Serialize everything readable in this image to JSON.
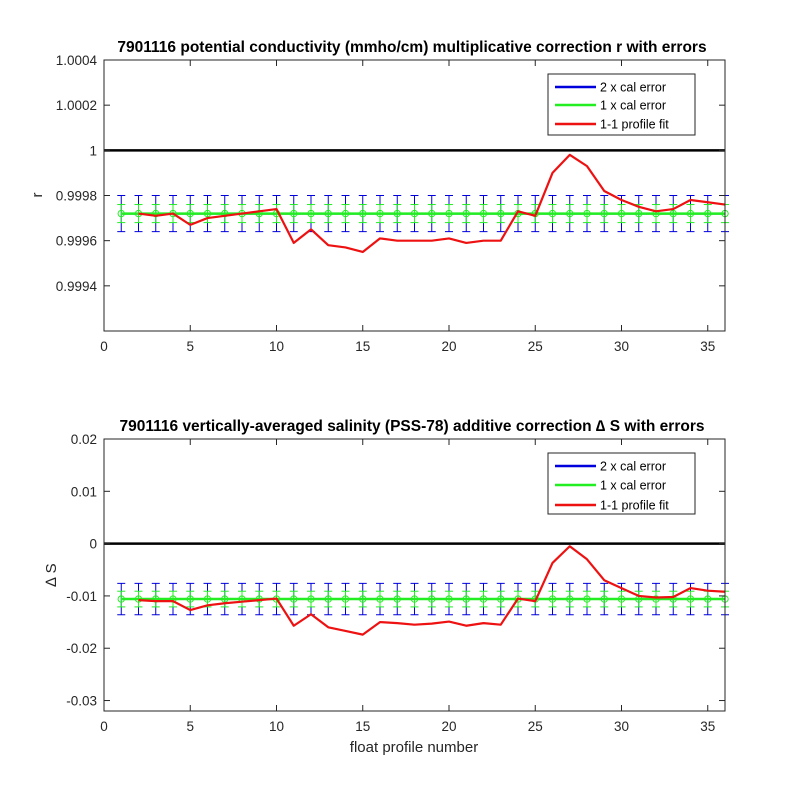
{
  "chart_data": [
    {
      "type": "line",
      "title": "7901116 potential conductivity (mmho/cm) multiplicative correction r with errors",
      "xlabel": "",
      "ylabel": "r",
      "xlim": [
        0,
        36
      ],
      "ylim": [
        0.9992,
        1.0004
      ],
      "xticks": [
        0,
        5,
        10,
        15,
        20,
        25,
        30,
        35
      ],
      "xtick_labels": [
        "0",
        "5",
        "10",
        "15",
        "20",
        "25",
        "30",
        "35"
      ],
      "yticks": [
        0.9994,
        0.9996,
        0.9998,
        1,
        1.0002,
        1.0004
      ],
      "ytick_labels": [
        "0.9994",
        "0.9996",
        "0.9998",
        "1",
        "1.0002",
        "1.0004"
      ],
      "reference_line": 1,
      "grid": false,
      "legend_position": "top-right",
      "legend": [
        "2 x cal error",
        "1 x cal error",
        "1-1 profile fit"
      ],
      "colors": {
        "two_x_error": "#0000dd",
        "one_x_error": "#22ee22",
        "profile_fit": "#ee1111",
        "reference": "#000000"
      },
      "calibration": {
        "x": [
          1,
          36
        ],
        "value": 0.99972,
        "one_x_error": 4e-05,
        "two_x_error": 8e-05
      },
      "errorbar_x": [
        1,
        2,
        3,
        4,
        5,
        6,
        7,
        8,
        9,
        10,
        11,
        12,
        13,
        14,
        15,
        16,
        17,
        18,
        19,
        20,
        21,
        22,
        23,
        24,
        25,
        26,
        27,
        28,
        29,
        30,
        31,
        32,
        33,
        34,
        35,
        36
      ],
      "series": [
        {
          "name": "1-1 profile fit",
          "x": [
            2,
            3,
            4,
            5,
            6,
            7,
            8,
            9,
            10,
            11,
            12,
            13,
            14,
            15,
            16,
            17,
            18,
            19,
            20,
            21,
            22,
            23,
            24,
            25,
            26,
            27,
            28,
            29,
            30,
            31,
            32,
            33,
            34,
            35,
            36
          ],
          "y": [
            0.99972,
            0.99971,
            0.99972,
            0.99967,
            0.9997,
            0.99971,
            0.99972,
            0.99973,
            0.99974,
            0.99959,
            0.99965,
            0.99958,
            0.99957,
            0.99955,
            0.99961,
            0.9996,
            0.9996,
            0.9996,
            0.99961,
            0.99959,
            0.9996,
            0.9996,
            0.99973,
            0.99971,
            0.9999,
            0.99998,
            0.99993,
            0.99982,
            0.99978,
            0.99975,
            0.99973,
            0.99974,
            0.99978,
            0.99977,
            0.99976
          ]
        }
      ]
    },
    {
      "type": "line",
      "title": "7901116 vertically-averaged salinity (PSS-78) additive correction ∆ S with errors",
      "xlabel": "float profile number",
      "ylabel": "∆ S",
      "xlim": [
        0,
        36
      ],
      "ylim": [
        -0.032,
        0.02
      ],
      "xticks": [
        0,
        5,
        10,
        15,
        20,
        25,
        30,
        35
      ],
      "xtick_labels": [
        "0",
        "5",
        "10",
        "15",
        "20",
        "25",
        "30",
        "35"
      ],
      "yticks": [
        -0.03,
        -0.02,
        -0.01,
        0,
        0.01,
        0.02
      ],
      "ytick_labels": [
        "-0.03",
        "-0.02",
        "-0.01",
        "0",
        "0.01",
        "0.02"
      ],
      "reference_line": 0,
      "grid": false,
      "legend_position": "top-right",
      "legend": [
        "2 x cal error",
        "1 x cal error",
        "1-1 profile fit"
      ],
      "colors": {
        "two_x_error": "#0000dd",
        "one_x_error": "#22ee22",
        "profile_fit": "#ee1111",
        "reference": "#000000"
      },
      "calibration": {
        "x": [
          1,
          36
        ],
        "value": -0.0106,
        "one_x_error": 0.0015,
        "two_x_error": 0.003
      },
      "errorbar_x": [
        1,
        2,
        3,
        4,
        5,
        6,
        7,
        8,
        9,
        10,
        11,
        12,
        13,
        14,
        15,
        16,
        17,
        18,
        19,
        20,
        21,
        22,
        23,
        24,
        25,
        26,
        27,
        28,
        29,
        30,
        31,
        32,
        33,
        34,
        35,
        36
      ],
      "series": [
        {
          "name": "1-1 profile fit",
          "x": [
            2,
            3,
            4,
            5,
            6,
            7,
            8,
            9,
            10,
            11,
            12,
            13,
            14,
            15,
            16,
            17,
            18,
            19,
            20,
            21,
            22,
            23,
            24,
            25,
            26,
            27,
            28,
            29,
            30,
            31,
            32,
            33,
            34,
            35,
            36
          ],
          "y": [
            -0.0108,
            -0.011,
            -0.011,
            -0.0127,
            -0.0118,
            -0.0114,
            -0.0111,
            -0.0108,
            -0.0105,
            -0.0157,
            -0.0135,
            -0.016,
            -0.0167,
            -0.0174,
            -0.015,
            -0.0152,
            -0.0155,
            -0.0153,
            -0.0149,
            -0.0157,
            -0.0152,
            -0.0155,
            -0.0105,
            -0.011,
            -0.0037,
            -0.0005,
            -0.003,
            -0.007,
            -0.0085,
            -0.01,
            -0.0103,
            -0.0102,
            -0.0085,
            -0.009,
            -0.0092
          ]
        }
      ]
    }
  ]
}
